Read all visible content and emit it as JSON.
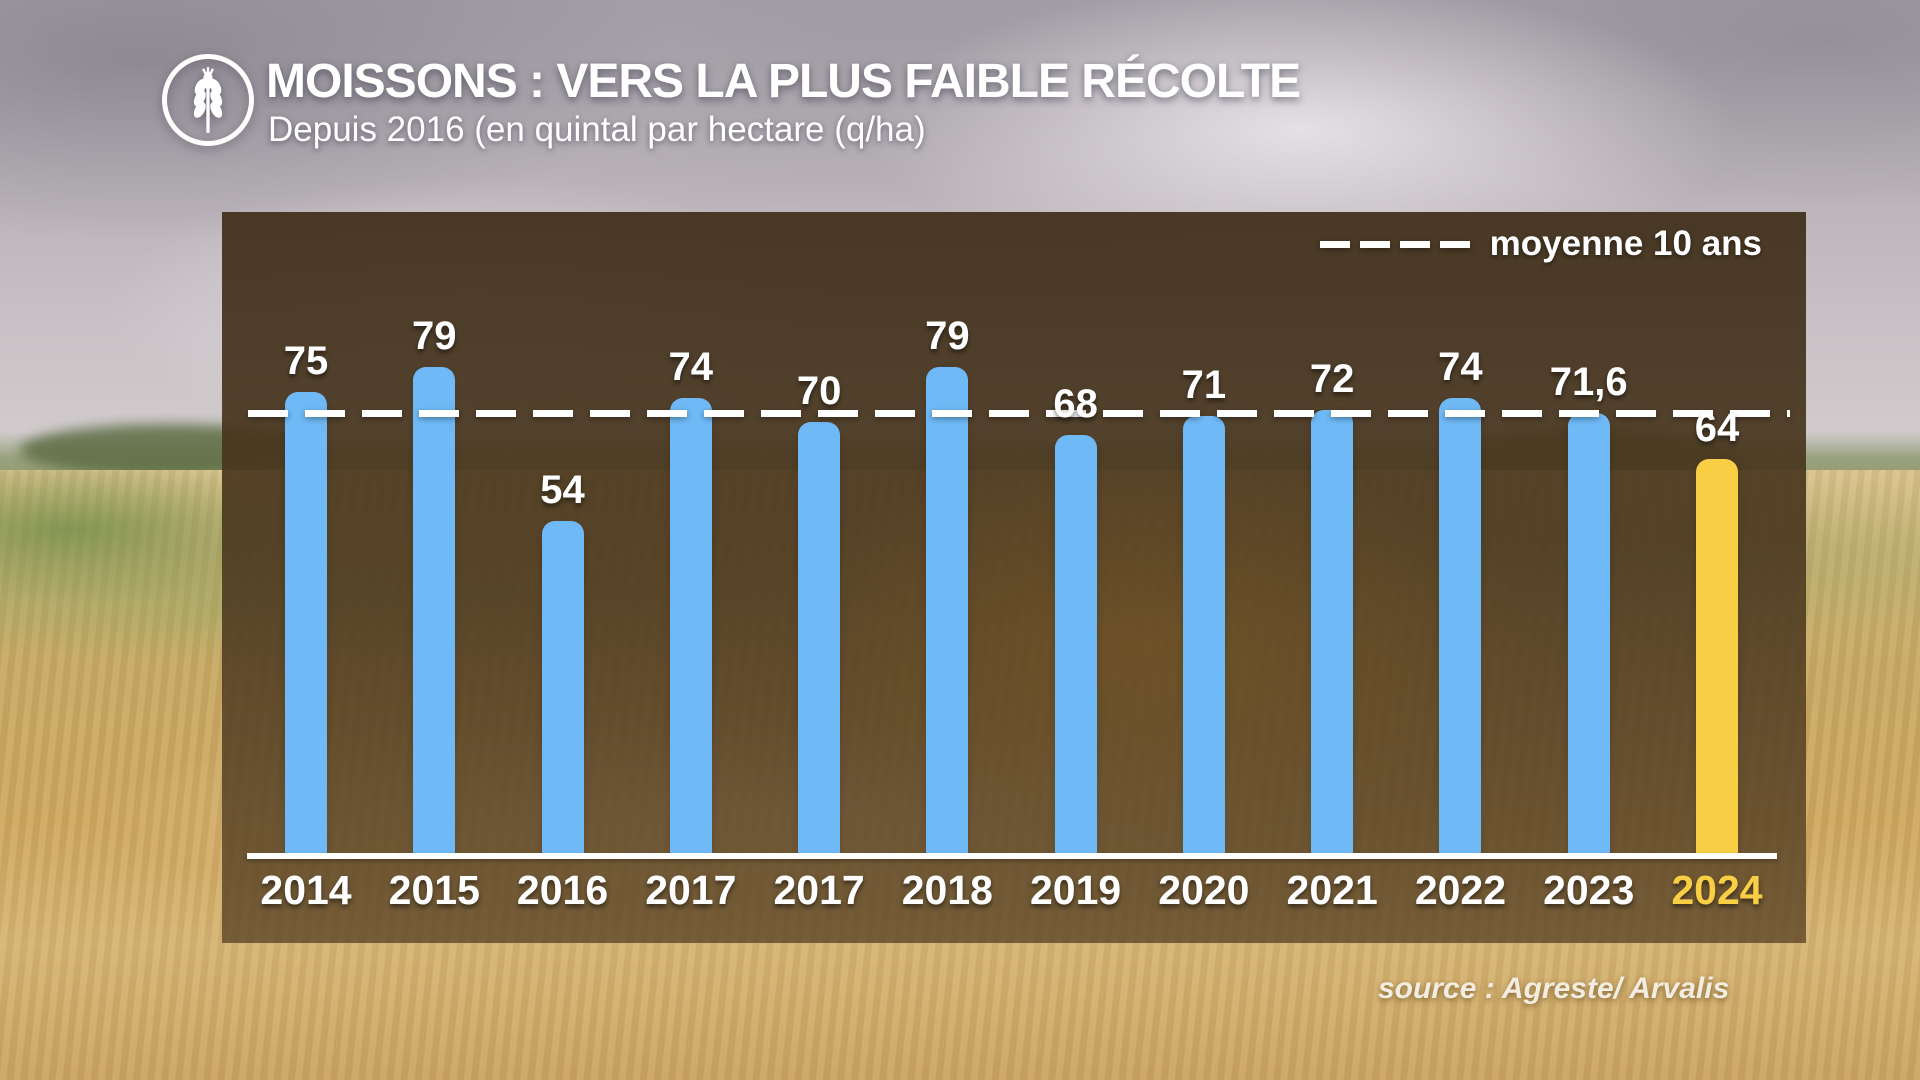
{
  "header": {
    "title": "MOISSONS : VERS LA PLUS FAIBLE RÉCOLTE",
    "subtitle": "Depuis 2016 (en quintal par hectare (q/ha)"
  },
  "chart_data": {
    "type": "bar",
    "title": "MOISSONS : VERS LA PLUS FAIBLE RÉCOLTE",
    "subtitle": "Depuis 2016 (en quintal par hectare (q/ha)",
    "unit": "q/ha",
    "categories": [
      "2014",
      "2015",
      "2016",
      "2017",
      "2017",
      "2018",
      "2019",
      "2020",
      "2021",
      "2022",
      "2023",
      "2024"
    ],
    "values": [
      75,
      79,
      54,
      74,
      70,
      79,
      68,
      71,
      72,
      74,
      71.6,
      64
    ],
    "value_labels": [
      "75",
      "79",
      "54",
      "74",
      "70",
      "79",
      "68",
      "71",
      "72",
      "74",
      "71,6",
      "64"
    ],
    "highlight_index": 11,
    "average_line": {
      "label": "moyenne 10 ans",
      "value": 71.6
    },
    "ylim": [
      0,
      95
    ],
    "grid": false,
    "legend_position": "top-right",
    "bar_color": "#6FB9F6",
    "highlight_color": "#F8CF44",
    "label_color": "#FFFFFF"
  },
  "source": {
    "label": "source : Agreste/ Arvalis"
  }
}
